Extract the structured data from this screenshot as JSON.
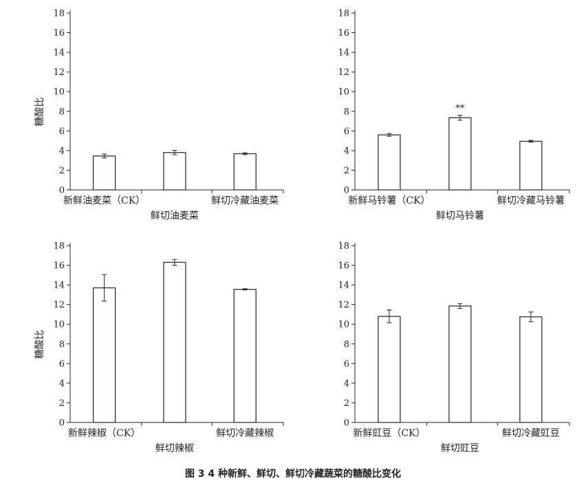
{
  "caption": "图 3   4 种新鲜、鲜切、鲜切冷藏蔬菜的糖酸比变化",
  "chart_data": [
    {
      "type": "bar",
      "ylabel": "糖酸比",
      "ylim": [
        0,
        18
      ],
      "yticks": [
        0,
        2,
        4,
        6,
        8,
        10,
        12,
        14,
        16,
        18
      ],
      "categories": [
        "新鲜油麦菜（CK）",
        "鲜切油麦菜",
        "鲜切冷藏油麦菜"
      ],
      "values": [
        3.45,
        3.8,
        3.68
      ],
      "errors": [
        0.2,
        0.22,
        0.1
      ],
      "annotations": [
        "",
        "",
        ""
      ],
      "grid": false
    },
    {
      "type": "bar",
      "ylabel": "",
      "ylim": [
        0,
        18
      ],
      "yticks": [
        0,
        2,
        4,
        6,
        8,
        10,
        12,
        14,
        16,
        18
      ],
      "categories": [
        "新鲜马铃薯（CK）",
        "鲜切马铃薯",
        "鲜切冷藏马铃薯"
      ],
      "values": [
        5.6,
        7.35,
        4.95
      ],
      "errors": [
        0.15,
        0.25,
        0.1
      ],
      "annotations": [
        "",
        "**",
        ""
      ],
      "grid": false
    },
    {
      "type": "bar",
      "ylabel": "糖酸比",
      "ylim": [
        0,
        18
      ],
      "yticks": [
        0,
        2,
        4,
        6,
        8,
        10,
        12,
        14,
        16,
        18
      ],
      "categories": [
        "新鲜辣椒（CK）",
        "鲜切辣椒",
        "鲜切冷藏辣椒"
      ],
      "values": [
        13.7,
        16.3,
        13.55
      ],
      "errors": [
        1.35,
        0.3,
        0.06
      ],
      "annotations": [
        "",
        "",
        ""
      ],
      "grid": false
    },
    {
      "type": "bar",
      "ylabel": "",
      "ylim": [
        0,
        18
      ],
      "yticks": [
        0,
        2,
        4,
        6,
        8,
        10,
        12,
        14,
        16,
        18
      ],
      "categories": [
        "新鲜豇豆（CK）",
        "鲜切豇豆",
        "鲜切冷藏豇豆"
      ],
      "values": [
        10.8,
        11.85,
        10.75
      ],
      "errors": [
        0.65,
        0.25,
        0.5
      ],
      "annotations": [
        "",
        "",
        ""
      ],
      "grid": false
    }
  ]
}
